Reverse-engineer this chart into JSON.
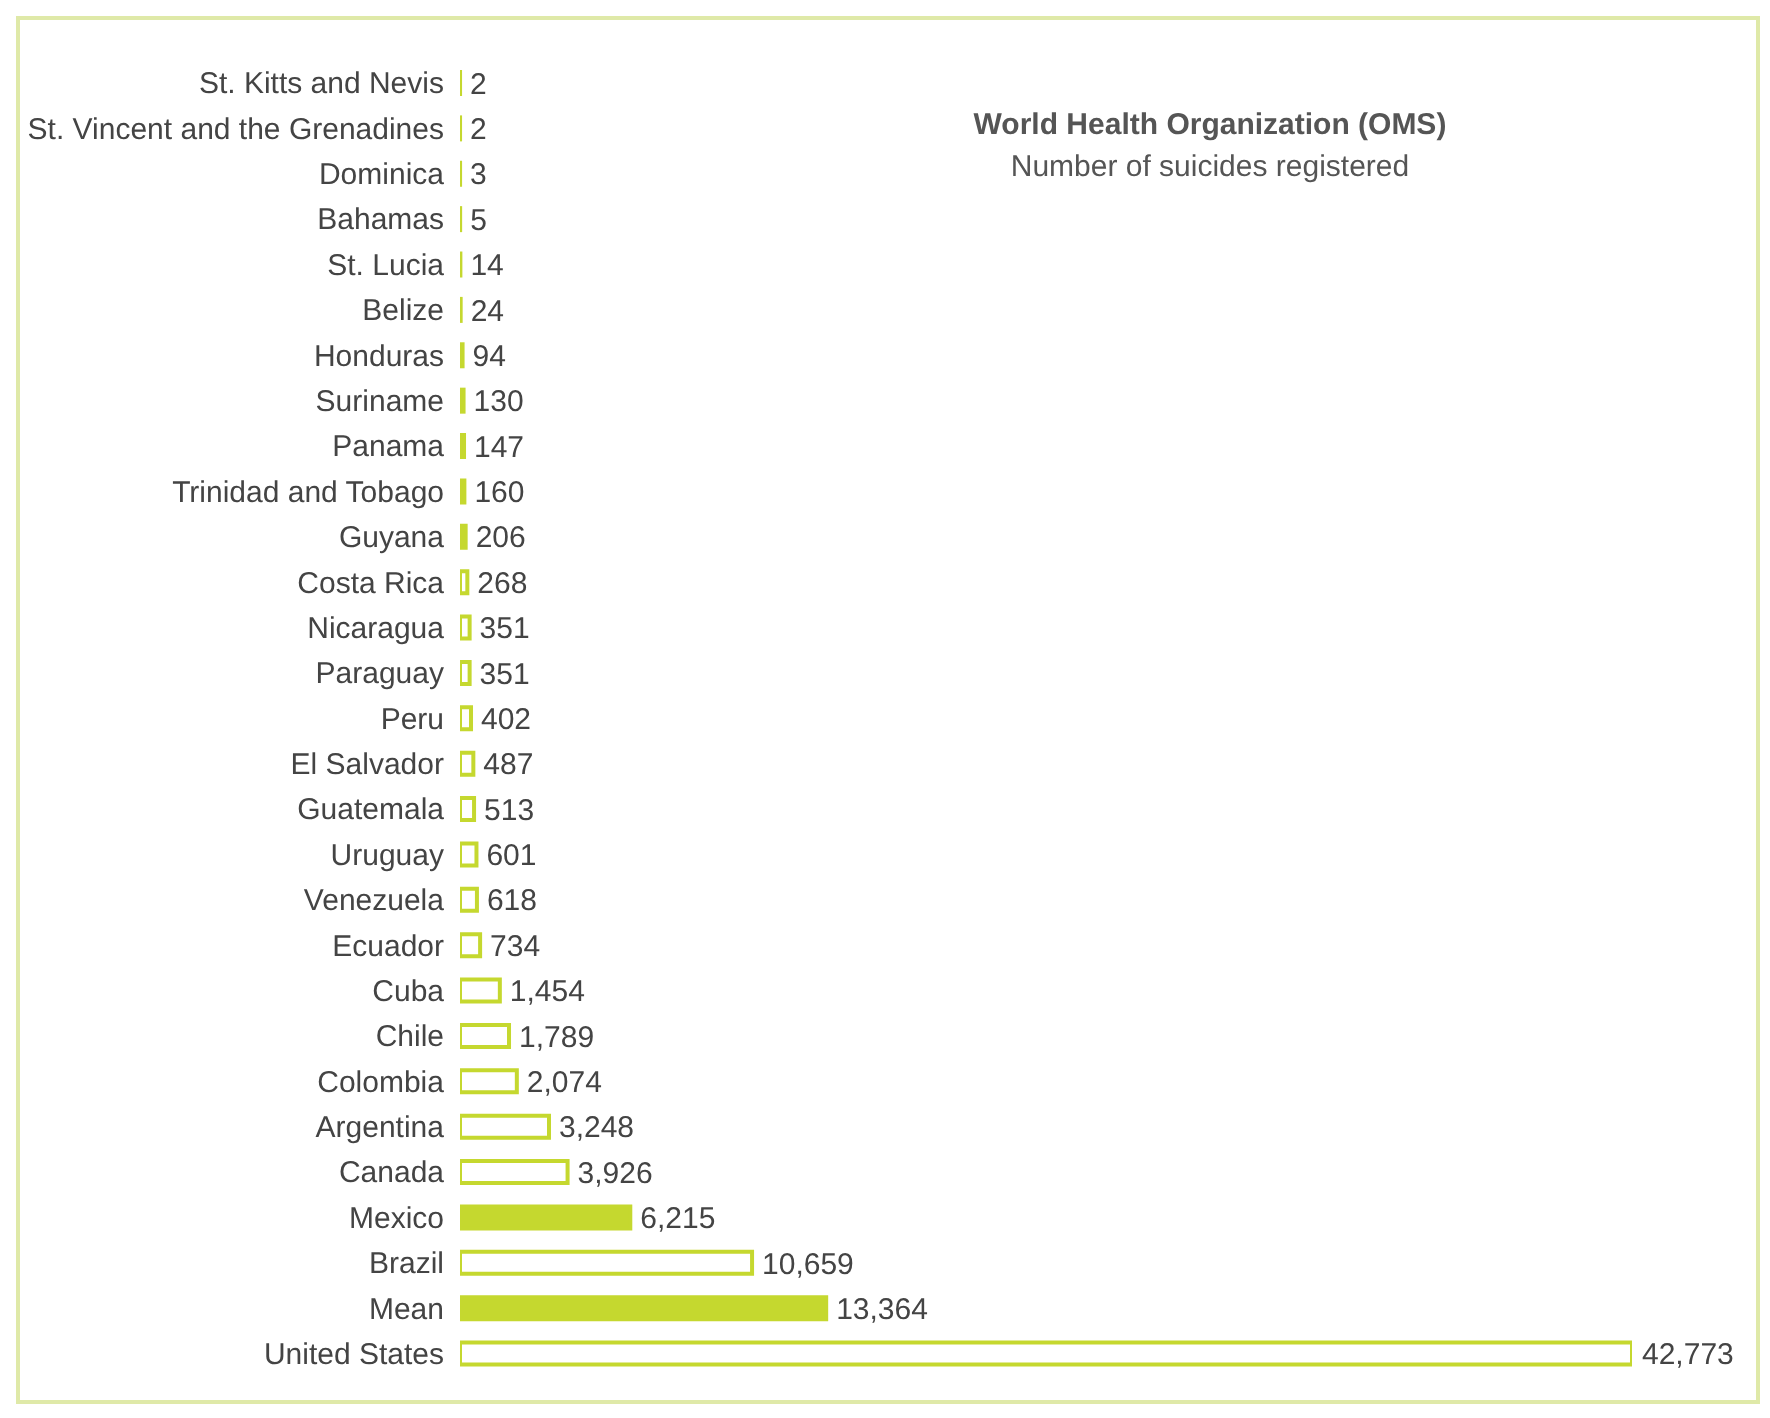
{
  "chart_data": {
    "type": "bar",
    "orientation": "horizontal",
    "title": "World Health Organization (OMS)",
    "subtitle": "Number of suicides registered",
    "categories": [
      "St. Kitts and Nevis",
      "St. Vincent and the Grenadines",
      "Dominica",
      "Bahamas",
      "St. Lucia",
      "Belize",
      "Honduras",
      "Suriname",
      "Panama",
      "Trinidad and Tobago",
      "Guyana",
      "Costa Rica",
      "Nicaragua",
      "Paraguay",
      "Peru",
      "El Salvador",
      "Guatemala",
      "Uruguay",
      "Venezuela",
      "Ecuador",
      "Cuba",
      "Chile",
      "Colombia",
      "Argentina",
      "Canada",
      "Mexico",
      "Brazil",
      "Mean",
      "United States"
    ],
    "series": [
      {
        "color": "#c5d82f",
        "values": [
          2,
          2,
          3,
          5,
          14,
          24,
          94,
          130,
          147,
          160,
          206,
          268,
          351,
          351,
          402,
          487,
          513,
          601,
          618,
          734,
          1454,
          1789,
          2074,
          3248,
          3926,
          6215,
          10659,
          13364,
          42773
        ],
        "colors": [
          "#c5d82f",
          "#c5d82f",
          "#c5d82f",
          "#c5d82f",
          "#c5d82f",
          "#c5d82f",
          "#c5d82f",
          "#c5d82f",
          "#c5d82f",
          "#c5d82f",
          "#c5d82f",
          "#ffffff",
          "#ffffff",
          "#ffffff",
          "#ffffff",
          "#ffffff",
          "#ffffff",
          "#ffffff",
          "#ffffff",
          "#ffffff",
          "#ffffff",
          "#ffffff",
          "#ffffff",
          "#ffffff",
          "#ffffff",
          "#c5d82f",
          "#ffffff",
          "#c5d82f",
          "#ffffff"
        ],
        "value_labels": [
          "2",
          "2",
          "3",
          "5",
          "14",
          "24",
          "94",
          "130",
          "147",
          "160",
          "206",
          "268",
          "351",
          "351",
          "402",
          "487",
          "513",
          "601",
          "618",
          "734",
          "1,454",
          "1,789",
          "2,074",
          "3,248",
          "3,926",
          "6,215",
          "10,659",
          "13,364",
          "42,773"
        ]
      }
    ],
    "tick_labels": "y"
  }
}
